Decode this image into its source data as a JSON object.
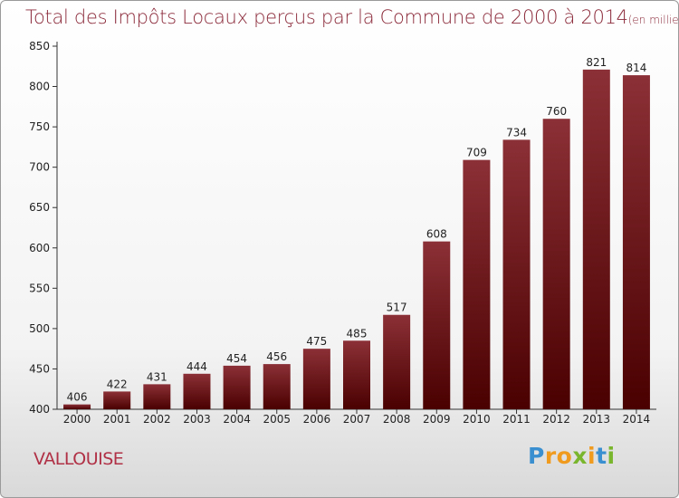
{
  "title": "Total des Impôts Locaux perçus par la Commune de 2000 à 2014",
  "unit": "(en milliers d'€)",
  "commune": "VALLOUISE",
  "logo": {
    "letters": [
      "P",
      "r",
      "o",
      "x",
      "i",
      "t",
      "i"
    ],
    "colors": [
      "#3a8fd0",
      "#f09a1e",
      "#f09a1e",
      "#7ab52e",
      "#f09a1e",
      "#3a8fd0",
      "#7ab52e"
    ]
  },
  "chart_data": {
    "type": "bar",
    "categories": [
      "2000",
      "2001",
      "2002",
      "2003",
      "2004",
      "2005",
      "2006",
      "2007",
      "2008",
      "2009",
      "2010",
      "2011",
      "2012",
      "2013",
      "2014"
    ],
    "values": [
      406,
      422,
      431,
      444,
      454,
      456,
      475,
      485,
      517,
      608,
      709,
      734,
      760,
      821,
      814
    ],
    "data_labels": [
      "406",
      "422",
      "431",
      "444",
      "454",
      "456",
      "475",
      "485",
      "517",
      "608",
      "709",
      "734",
      "760",
      "821",
      "814"
    ],
    "ylim": [
      400,
      850
    ],
    "yticks": [
      400,
      450,
      500,
      550,
      600,
      650,
      700,
      750,
      800,
      850
    ],
    "grid": false,
    "bar_color_top": "#8b3036",
    "bar_color_bottom": "#4a0000"
  }
}
